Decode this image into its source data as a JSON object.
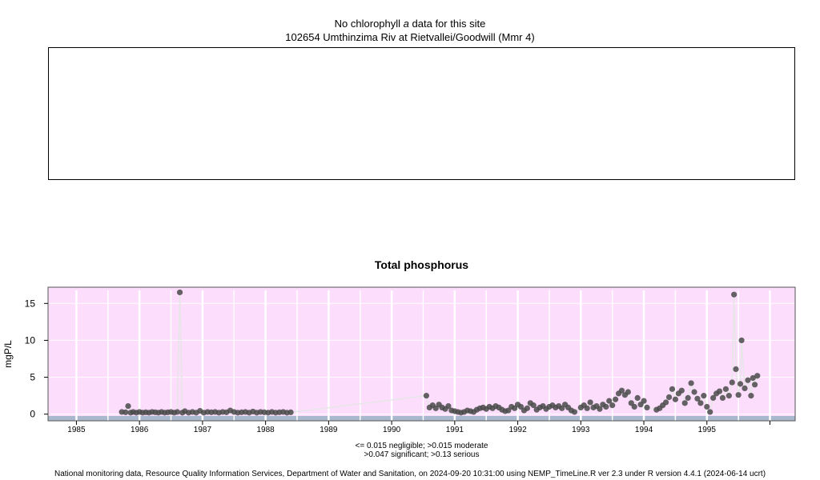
{
  "header": {
    "no_chl_prefix": "No chlorophyll",
    "no_chl_italic": "a",
    "no_chl_suffix": "data for this site",
    "site_line": "102654 Umthinzima Riv at Rietvallei/Goodwill (Mmr 4)"
  },
  "notes": {
    "line1": "<= 0.015 negligible; >0.015 moderate",
    "line2": ">0.047 significant; >0.13 serious"
  },
  "footer": "National monitoring data, Resource Quality Information Services, Department of Water and Sanitation, on 2024-09-20 10:31:00 using NEMP_TimeLine.R ver 2.3 under R version 4.4.1 (2024-06-14 ucrt)",
  "colors": {
    "panel_bg": "#fcddfc",
    "bottom_band": "#a9b8cc",
    "point": "#4a4a4a",
    "line": "#e6e6e6",
    "gridline": "#ffffff"
  },
  "chart_data": {
    "type": "scatter",
    "title": "Total phosphorus",
    "ylabel": "mgP/L",
    "xlabel": "",
    "xlim": [
      1984.55,
      1996.4
    ],
    "ylim": [
      -0.9,
      17.2
    ],
    "yticks": [
      0,
      5,
      10,
      15
    ],
    "xticks": [
      "1985",
      "1986",
      "1987",
      "1988",
      "1989",
      "1990",
      "1991",
      "1992",
      "1993",
      "1994",
      "1995"
    ],
    "grid": true,
    "series": [
      {
        "points": [
          [
            1985.72,
            0.3
          ],
          [
            1985.78,
            0.25
          ],
          [
            1985.82,
            1.1
          ],
          [
            1985.86,
            0.2
          ],
          [
            1985.9,
            0.3
          ],
          [
            1985.95,
            0.2
          ],
          [
            1986.0,
            0.3
          ],
          [
            1986.05,
            0.2
          ],
          [
            1986.1,
            0.25
          ],
          [
            1986.15,
            0.2
          ],
          [
            1986.2,
            0.3
          ],
          [
            1986.25,
            0.25
          ],
          [
            1986.3,
            0.2
          ],
          [
            1986.35,
            0.3
          ],
          [
            1986.4,
            0.2
          ],
          [
            1986.45,
            0.25
          ],
          [
            1986.5,
            0.3
          ],
          [
            1986.55,
            0.2
          ],
          [
            1986.6,
            0.3
          ],
          [
            1986.64,
            16.5
          ],
          [
            1986.68,
            0.2
          ],
          [
            1986.72,
            0.4
          ],
          [
            1986.78,
            0.2
          ],
          [
            1986.84,
            0.3
          ],
          [
            1986.9,
            0.2
          ],
          [
            1986.96,
            0.45
          ],
          [
            1987.02,
            0.2
          ],
          [
            1987.08,
            0.3
          ],
          [
            1987.14,
            0.25
          ],
          [
            1987.2,
            0.3
          ],
          [
            1987.26,
            0.2
          ],
          [
            1987.32,
            0.3
          ],
          [
            1987.38,
            0.25
          ],
          [
            1987.44,
            0.5
          ],
          [
            1987.5,
            0.3
          ],
          [
            1987.56,
            0.2
          ],
          [
            1987.62,
            0.25
          ],
          [
            1987.68,
            0.3
          ],
          [
            1987.74,
            0.2
          ],
          [
            1987.8,
            0.35
          ],
          [
            1987.86,
            0.2
          ],
          [
            1987.92,
            0.3
          ],
          [
            1987.98,
            0.25
          ],
          [
            1988.04,
            0.2
          ],
          [
            1988.1,
            0.3
          ],
          [
            1988.16,
            0.2
          ],
          [
            1988.22,
            0.25
          ],
          [
            1988.28,
            0.3
          ],
          [
            1988.34,
            0.2
          ],
          [
            1988.4,
            0.25
          ],
          [
            1990.55,
            2.5
          ],
          [
            1990.6,
            0.9
          ],
          [
            1990.65,
            1.2
          ],
          [
            1990.7,
            0.8
          ],
          [
            1990.75,
            1.3
          ],
          [
            1990.8,
            0.9
          ],
          [
            1990.85,
            0.7
          ],
          [
            1990.9,
            1.1
          ],
          [
            1990.95,
            0.5
          ],
          [
            1991.0,
            0.4
          ],
          [
            1991.05,
            0.3
          ],
          [
            1991.1,
            0.2
          ],
          [
            1991.15,
            0.3
          ],
          [
            1991.2,
            0.5
          ],
          [
            1991.25,
            0.4
          ],
          [
            1991.3,
            0.3
          ],
          [
            1991.35,
            0.6
          ],
          [
            1991.4,
            0.8
          ],
          [
            1991.45,
            0.9
          ],
          [
            1991.5,
            0.7
          ],
          [
            1991.55,
            1.0
          ],
          [
            1991.6,
            0.8
          ],
          [
            1991.65,
            1.1
          ],
          [
            1991.7,
            0.9
          ],
          [
            1991.75,
            0.6
          ],
          [
            1991.8,
            0.4
          ],
          [
            1991.85,
            0.5
          ],
          [
            1991.9,
            1.0
          ],
          [
            1991.95,
            0.8
          ],
          [
            1992.0,
            1.3
          ],
          [
            1992.05,
            1.0
          ],
          [
            1992.1,
            0.5
          ],
          [
            1992.15,
            0.8
          ],
          [
            1992.2,
            1.5
          ],
          [
            1992.25,
            1.2
          ],
          [
            1992.3,
            0.6
          ],
          [
            1992.35,
            0.9
          ],
          [
            1992.4,
            1.1
          ],
          [
            1992.45,
            0.7
          ],
          [
            1992.5,
            1.0
          ],
          [
            1992.55,
            1.2
          ],
          [
            1992.6,
            0.9
          ],
          [
            1992.65,
            1.1
          ],
          [
            1992.7,
            0.8
          ],
          [
            1992.75,
            1.3
          ],
          [
            1992.8,
            0.9
          ],
          [
            1992.85,
            0.5
          ],
          [
            1992.9,
            0.3
          ],
          [
            1993.0,
            0.9
          ],
          [
            1993.05,
            1.2
          ],
          [
            1993.1,
            0.8
          ],
          [
            1993.15,
            1.6
          ],
          [
            1993.2,
            0.9
          ],
          [
            1993.25,
            1.1
          ],
          [
            1993.3,
            0.7
          ],
          [
            1993.35,
            1.3
          ],
          [
            1993.4,
            1.0
          ],
          [
            1993.45,
            1.8
          ],
          [
            1993.5,
            1.2
          ],
          [
            1993.55,
            2.0
          ],
          [
            1993.6,
            2.8
          ],
          [
            1993.65,
            3.2
          ],
          [
            1993.7,
            2.6
          ],
          [
            1993.75,
            3.0
          ],
          [
            1993.8,
            1.5
          ],
          [
            1993.85,
            1.0
          ],
          [
            1993.9,
            2.2
          ],
          [
            1993.95,
            1.3
          ],
          [
            1994.0,
            1.8
          ],
          [
            1994.05,
            0.9
          ],
          [
            1994.2,
            0.6
          ],
          [
            1994.25,
            0.8
          ],
          [
            1994.3,
            1.2
          ],
          [
            1994.35,
            1.6
          ],
          [
            1994.4,
            2.3
          ],
          [
            1994.45,
            3.4
          ],
          [
            1994.5,
            2.0
          ],
          [
            1994.55,
            2.8
          ],
          [
            1994.6,
            3.2
          ],
          [
            1994.65,
            1.5
          ],
          [
            1994.7,
            2.2
          ],
          [
            1994.75,
            4.2
          ],
          [
            1994.8,
            3.0
          ],
          [
            1994.85,
            2.1
          ],
          [
            1994.9,
            1.5
          ],
          [
            1994.95,
            2.5
          ],
          [
            1995.0,
            1.0
          ],
          [
            1995.05,
            0.3
          ],
          [
            1995.1,
            2.2
          ],
          [
            1995.15,
            2.8
          ],
          [
            1995.2,
            3.1
          ],
          [
            1995.25,
            2.2
          ],
          [
            1995.3,
            3.4
          ],
          [
            1995.35,
            2.5
          ],
          [
            1995.4,
            4.3
          ],
          [
            1995.43,
            16.2
          ],
          [
            1995.46,
            6.1
          ],
          [
            1995.5,
            2.6
          ],
          [
            1995.53,
            4.1
          ],
          [
            1995.55,
            10.0
          ],
          [
            1995.6,
            3.5
          ],
          [
            1995.65,
            4.6
          ],
          [
            1995.7,
            2.5
          ],
          [
            1995.73,
            4.9
          ],
          [
            1995.76,
            4.0
          ],
          [
            1995.8,
            5.2
          ]
        ]
      }
    ]
  }
}
